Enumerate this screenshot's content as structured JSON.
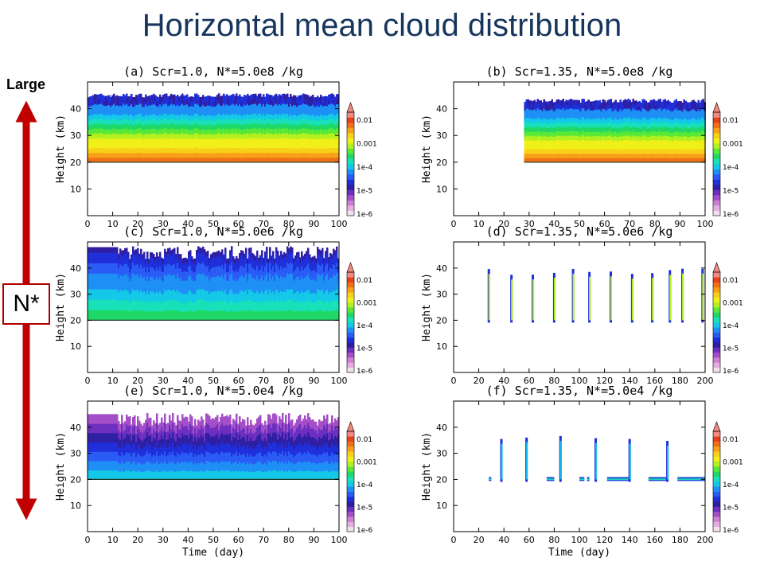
{
  "page": {
    "title": "Horizontal mean cloud distribution",
    "large_label": "Large",
    "nstar_label": "N*"
  },
  "colorbar": {
    "labels": [
      "0.01",
      "0.001",
      "1e-4",
      "1e-5",
      "1e-6"
    ],
    "colors": [
      "#f0e0ee",
      "#e6aee0",
      "#cf7fd3",
      "#a44fc7",
      "#6c2fbf",
      "#2f1fa3",
      "#1f2fd9",
      "#2a5cf5",
      "#1e8ff5",
      "#14c8e8",
      "#18e0b8",
      "#20d868",
      "#58e838",
      "#b4f020",
      "#f0f018",
      "#f8d018",
      "#f8a018",
      "#f07018",
      "#e84018",
      "#ee8a80"
    ]
  },
  "chart_data": [
    {
      "type": "heatmap",
      "panel": "a",
      "title": "(a) Scr=1.0, N*=5.0e8 /kg",
      "xlabel": "",
      "ylabel": "Height (km)",
      "xlim": [
        0,
        100
      ],
      "ylim": [
        0,
        50
      ],
      "xticks": [
        0,
        10,
        20,
        30,
        40,
        50,
        60,
        70,
        80,
        90,
        100
      ],
      "yticks": [
        10,
        20,
        30,
        40
      ],
      "cloud_start": 0,
      "cloud_bottom": 20,
      "cloud_top": 45,
      "pattern": "continuous"
    },
    {
      "type": "heatmap",
      "panel": "b",
      "title": "(b) Scr=1.35, N*=5.0e8 /kg",
      "xlabel": "",
      "ylabel": "Height (km)",
      "xlim": [
        0,
        100
      ],
      "ylim": [
        0,
        50
      ],
      "xticks": [
        0,
        10,
        20,
        30,
        40,
        50,
        60,
        70,
        80,
        90,
        100
      ],
      "yticks": [
        10,
        20,
        30,
        40
      ],
      "cloud_start": 28,
      "cloud_bottom": 20,
      "cloud_top": 43,
      "pattern": "continuous"
    },
    {
      "type": "heatmap",
      "panel": "c",
      "title": "(c) Scr=1.0, N*=5.0e6 /kg",
      "xlabel": "",
      "ylabel": "Height (km)",
      "xlim": [
        0,
        100
      ],
      "ylim": [
        0,
        50
      ],
      "xticks": [
        0,
        10,
        20,
        30,
        40,
        50,
        60,
        70,
        80,
        90,
        100
      ],
      "yticks": [
        10,
        20,
        30,
        40
      ],
      "cloud_start": 0,
      "cloud_bottom": 20,
      "cloud_top": 45,
      "pattern": "noisy"
    },
    {
      "type": "heatmap",
      "panel": "d",
      "title": "(d) Scr=1.35, N*=5.0e6 /kg",
      "xlabel": "",
      "ylabel": "Height (km)",
      "xlim": [
        0,
        200
      ],
      "ylim": [
        0,
        50
      ],
      "xticks": [
        0,
        20,
        40,
        60,
        80,
        100,
        120,
        140,
        160,
        180,
        200
      ],
      "yticks": [
        10,
        20,
        30,
        40
      ],
      "pattern": "spikes",
      "spike_days": [
        28,
        46,
        63,
        80,
        95,
        108,
        125,
        142,
        158,
        172,
        182,
        198
      ],
      "spike_top": 40
    },
    {
      "type": "heatmap",
      "panel": "e",
      "title": "(e) Scr=1.0, N*=5.0e4 /kg",
      "xlabel": "Time (day)",
      "ylabel": "Height (km)",
      "xlim": [
        0,
        100
      ],
      "ylim": [
        0,
        50
      ],
      "xticks": [
        0,
        10,
        20,
        30,
        40,
        50,
        60,
        70,
        80,
        90,
        100
      ],
      "yticks": [
        10,
        20,
        30,
        40
      ],
      "cloud_start": 0,
      "cloud_bottom": 20,
      "cloud_top": 42,
      "pattern": "noisy-low"
    },
    {
      "type": "heatmap",
      "panel": "f",
      "title": "(f) Scr=1.35, N*=5.0e4 /kg",
      "xlabel": "Time (day)",
      "ylabel": "Height (km)",
      "xlim": [
        0,
        200
      ],
      "ylim": [
        0,
        50
      ],
      "xticks": [
        0,
        20,
        40,
        60,
        80,
        100,
        120,
        140,
        160,
        180,
        200
      ],
      "yticks": [
        10,
        20,
        30,
        40
      ],
      "pattern": "sparse",
      "spike_days": [
        38,
        58,
        85,
        113,
        140,
        170
      ],
      "spike_top": 37,
      "segments": [
        [
          28,
          30
        ],
        [
          74,
          80
        ],
        [
          100,
          104
        ],
        [
          106,
          108
        ],
        [
          122,
          140
        ],
        [
          155,
          170
        ],
        [
          178,
          200
        ]
      ]
    }
  ]
}
